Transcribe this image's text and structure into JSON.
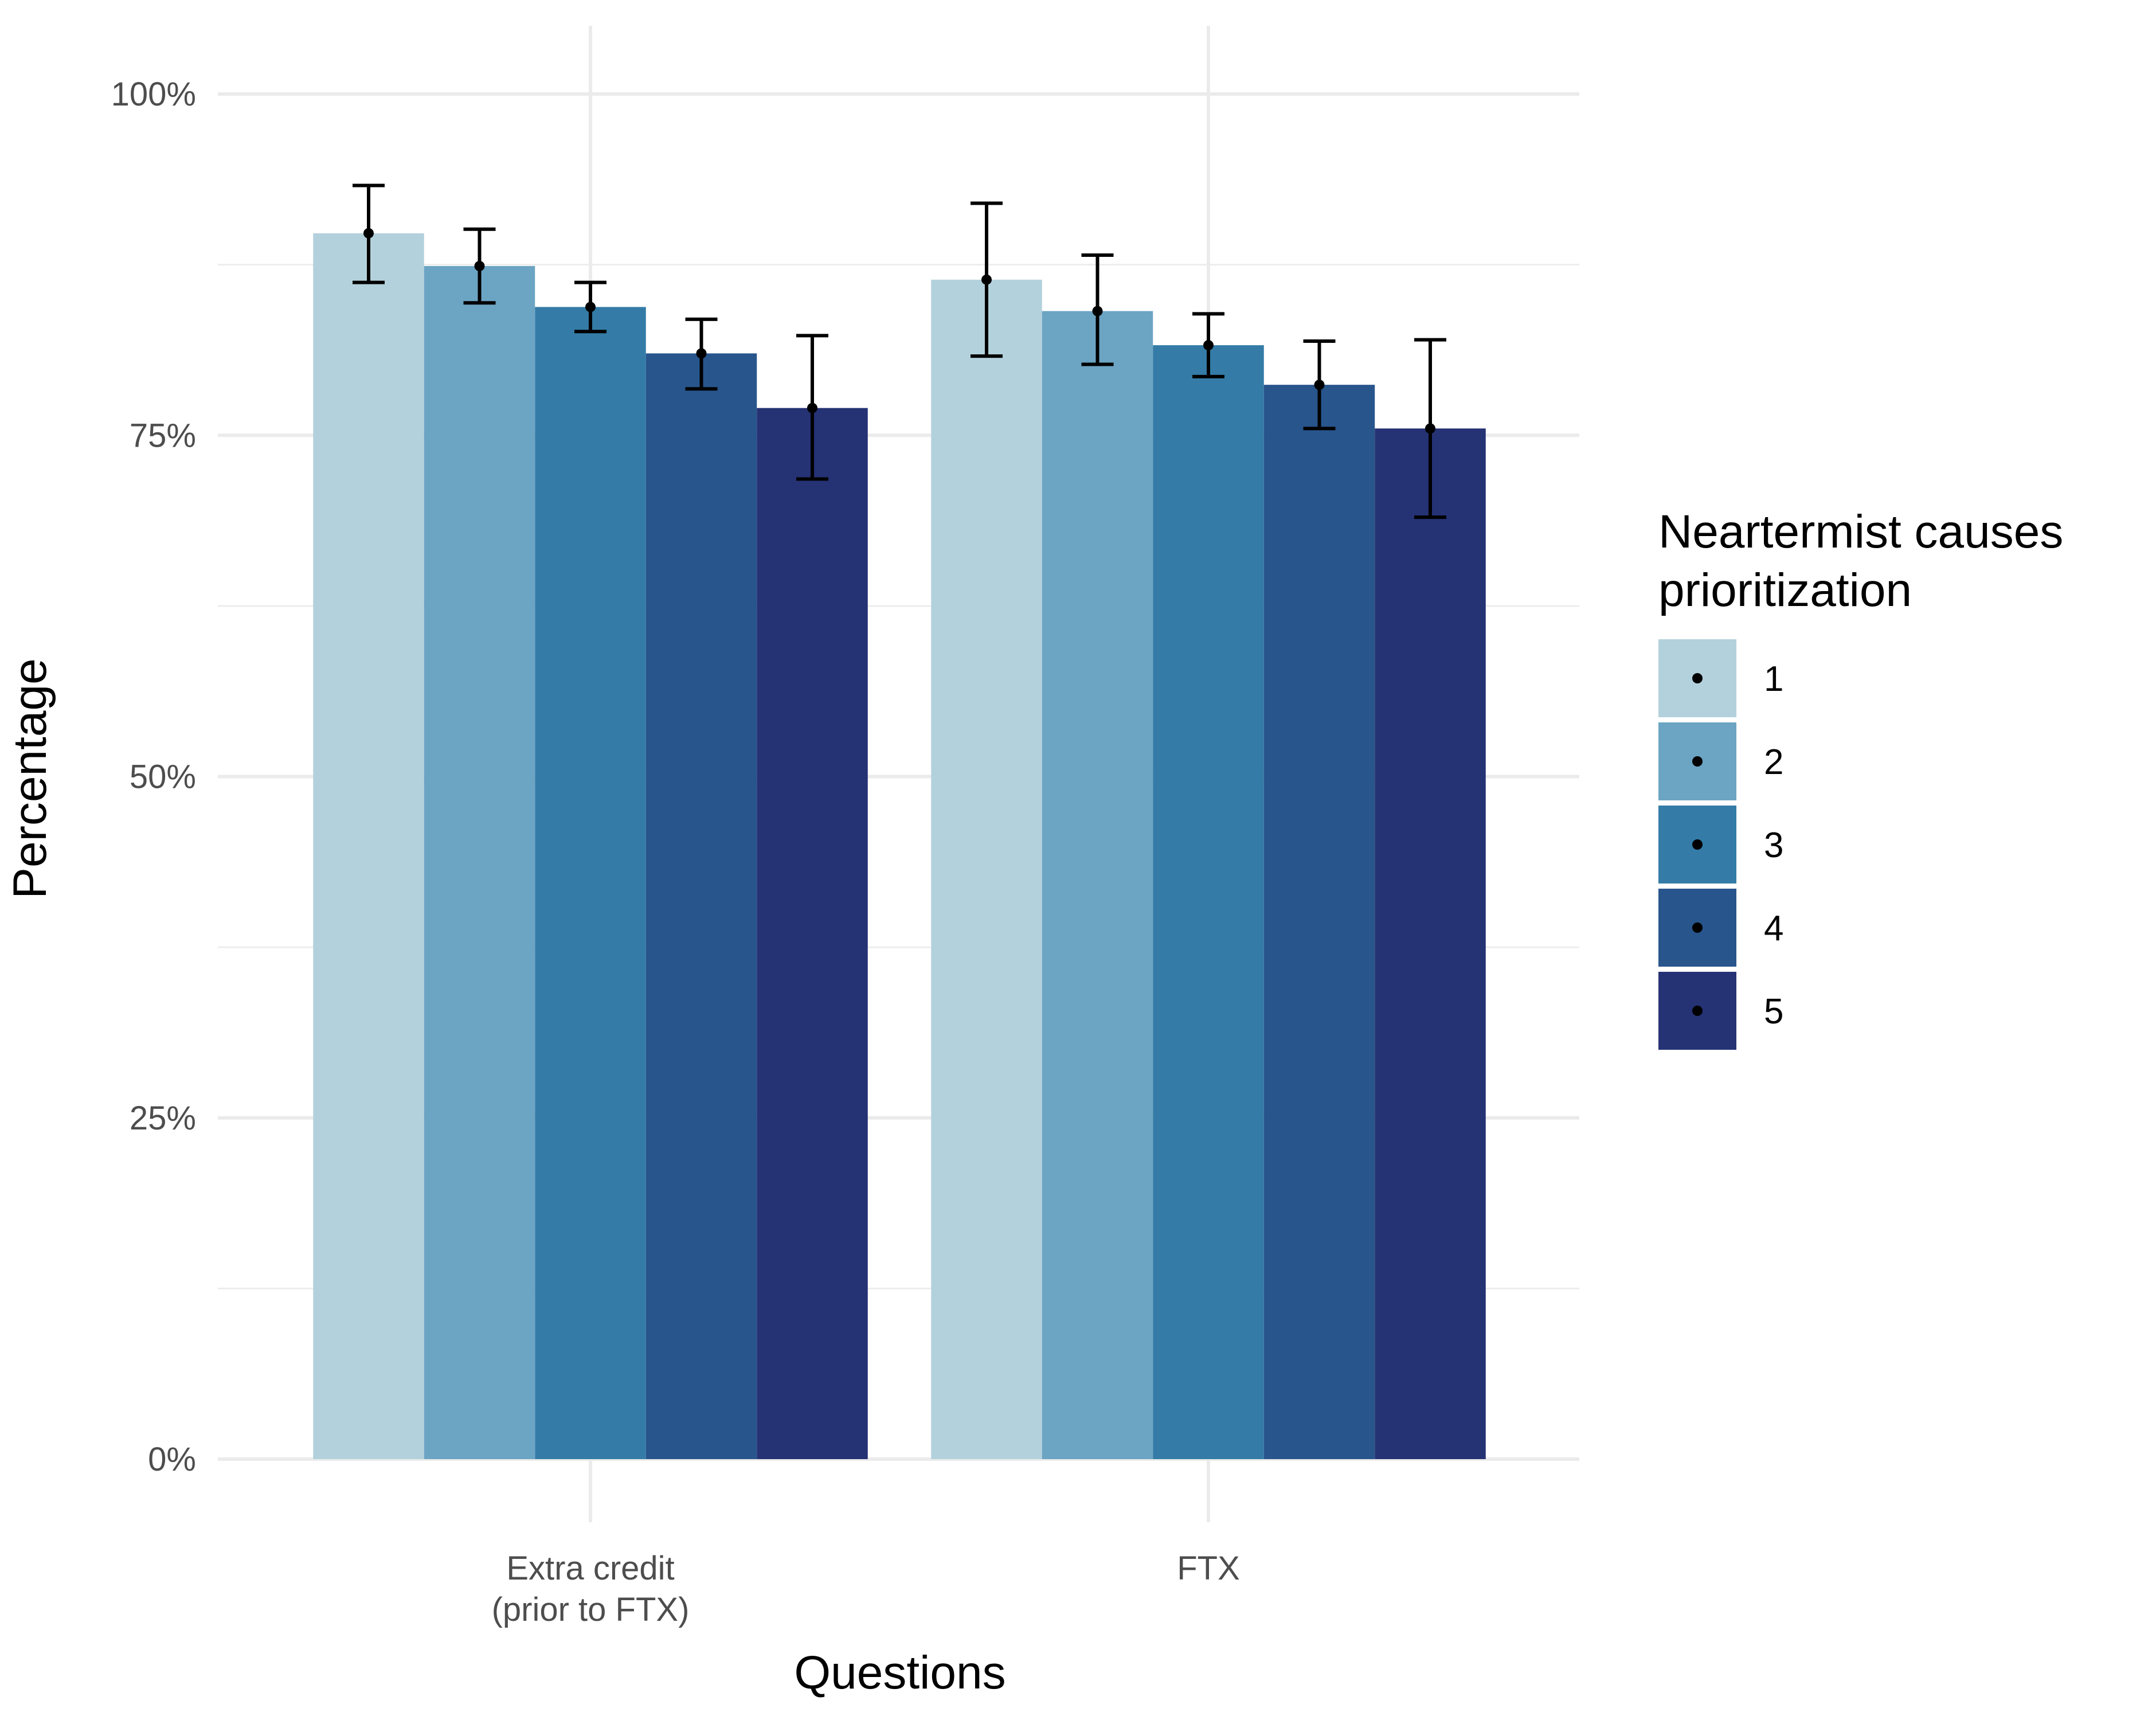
{
  "chart_data": {
    "type": "bar",
    "xlabel": "Questions",
    "ylabel": "Percentage",
    "ylim": [
      0,
      100
    ],
    "yticks": [
      {
        "value": 0,
        "label": "0%"
      },
      {
        "value": 25,
        "label": "25%"
      },
      {
        "value": 50,
        "label": "50%"
      },
      {
        "value": 75,
        "label": "75%"
      },
      {
        "value": 100,
        "label": "100%"
      }
    ],
    "categories": [
      {
        "lines": [
          "Extra credit",
          "(prior to FTX)"
        ]
      },
      {
        "lines": [
          "FTX"
        ]
      }
    ],
    "legend": {
      "title_lines": [
        "Neartermist causes",
        "prioritization"
      ],
      "position": "right"
    },
    "series": [
      {
        "name": "1",
        "color": "#b3d1dc",
        "values": [
          89.8,
          86.4
        ],
        "err_low": [
          86.2,
          80.8
        ],
        "err_high": [
          93.3,
          92.0
        ]
      },
      {
        "name": "2",
        "color": "#6ca4c3",
        "values": [
          87.4,
          84.1
        ],
        "err_low": [
          84.7,
          80.2
        ],
        "err_high": [
          90.1,
          88.2
        ]
      },
      {
        "name": "3",
        "color": "#347ca7",
        "values": [
          84.4,
          81.6
        ],
        "err_low": [
          82.6,
          79.3
        ],
        "err_high": [
          86.2,
          83.9
        ]
      },
      {
        "name": "4",
        "color": "#28558c",
        "values": [
          81.0,
          78.7
        ],
        "err_low": [
          78.4,
          75.5
        ],
        "err_high": [
          83.5,
          81.9
        ]
      },
      {
        "name": "5",
        "color": "#253274",
        "values": [
          77.0,
          75.5
        ],
        "err_low": [
          71.8,
          69.0
        ],
        "err_high": [
          82.3,
          82.0
        ]
      }
    ],
    "grid": true
  }
}
